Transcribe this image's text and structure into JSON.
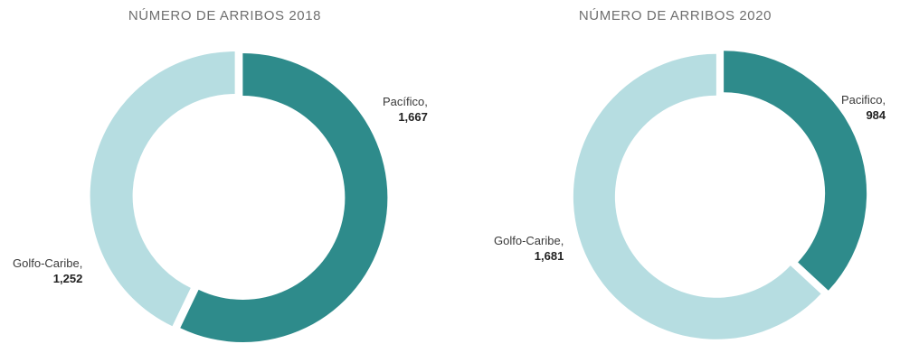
{
  "chart_data": [
    {
      "type": "pie",
      "title": "NÚMERO DE ARRIBOS 2018",
      "slices": [
        {
          "label": "Pacífico,",
          "value": 1667,
          "value_text": "1,667",
          "color": "#2e8b8b"
        },
        {
          "label": "Golfo-Caribe,",
          "value": 1252,
          "value_text": "1,252",
          "color": "#b6dde1"
        }
      ]
    },
    {
      "type": "pie",
      "title": "NÚMERO DE ARRIBOS 2020",
      "slices": [
        {
          "label": "Pacifico,",
          "value": 984,
          "value_text": "984",
          "color": "#2e8b8b"
        },
        {
          "label": "Golfo-Caribe,",
          "value": 1681,
          "value_text": "1,681",
          "color": "#b6dde1"
        }
      ]
    }
  ]
}
